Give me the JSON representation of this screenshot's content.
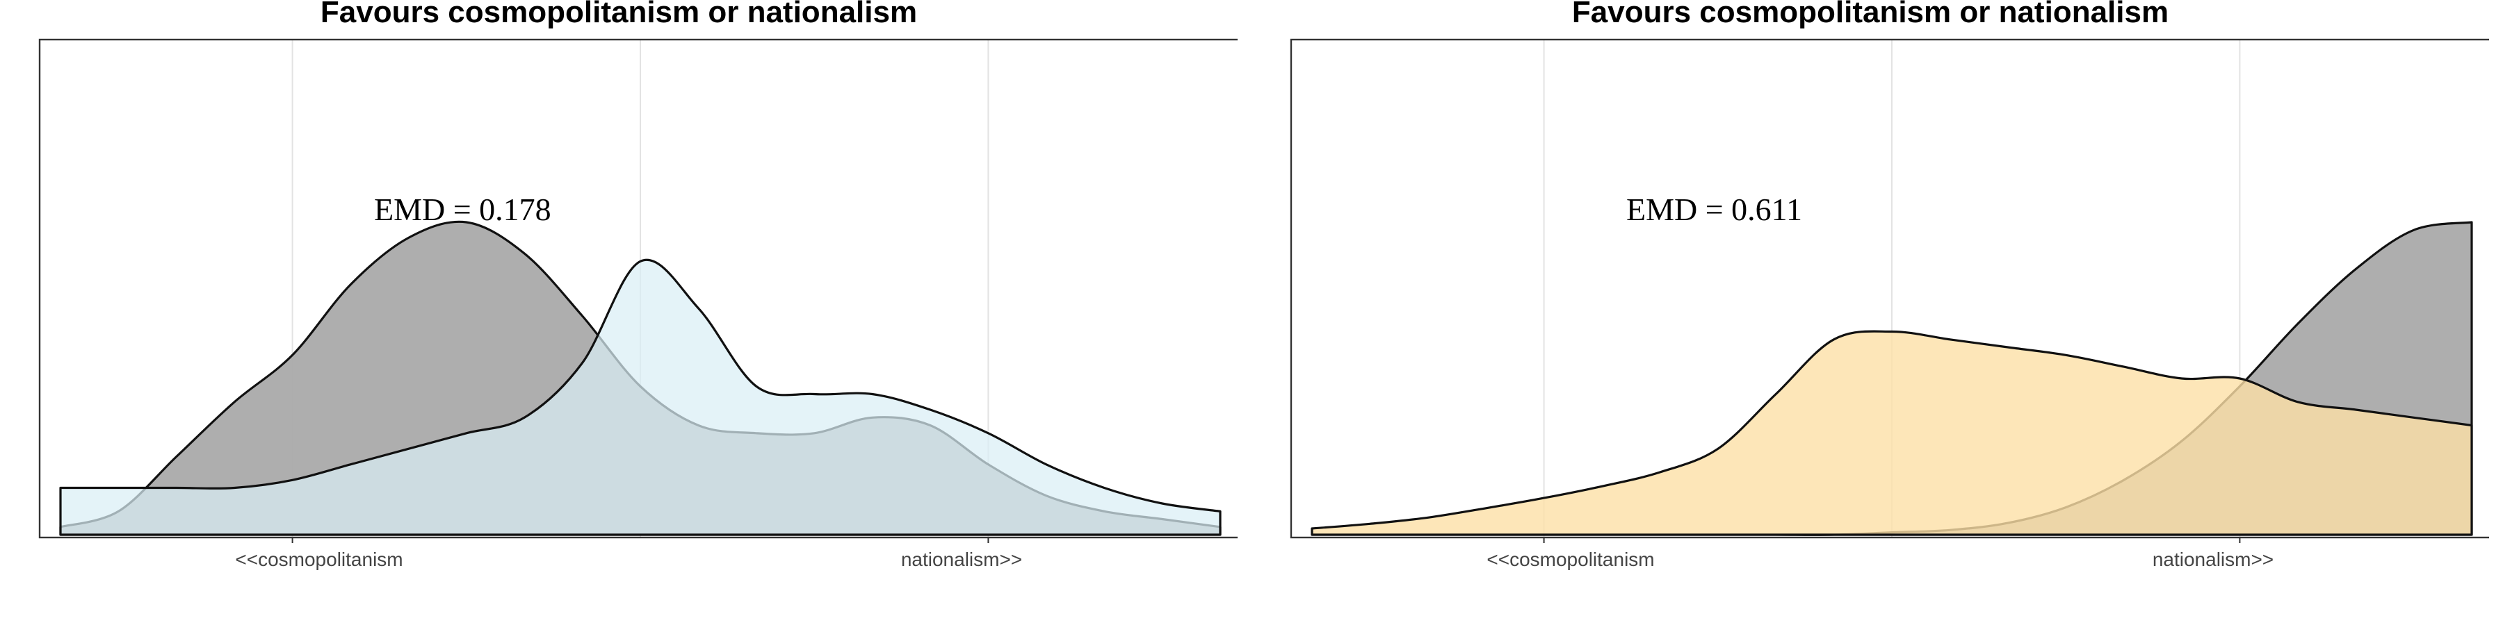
{
  "chart_data": [
    {
      "type": "area",
      "title": "Favours cosmopolitanism or nationalism",
      "annotation": "EMD = 0.178",
      "xlim": [
        0,
        10
      ],
      "ylim": [
        0,
        1
      ],
      "grid": true,
      "ticks": [
        {
          "x": 2,
          "label": "<<cosmopolitanism"
        },
        {
          "x": 8,
          "label": "nationalism>>"
        }
      ],
      "x": [
        0,
        0.5,
        1,
        1.5,
        2,
        2.5,
        3,
        3.5,
        4,
        4.5,
        5,
        5.5,
        6,
        6.5,
        7,
        7.5,
        8,
        8.5,
        9,
        9.5,
        10
      ],
      "series": [
        {
          "color": "#aaaaaa",
          "opacity": 0.95,
          "values": [
            0.01,
            0.03,
            0.1,
            0.17,
            0.23,
            0.32,
            0.38,
            0.4,
            0.36,
            0.28,
            0.19,
            0.14,
            0.13,
            0.13,
            0.15,
            0.14,
            0.09,
            0.05,
            0.03,
            0.02,
            0.01
          ]
        },
        {
          "color": "#d9eef5",
          "opacity": 0.72,
          "values": [
            0.06,
            0.06,
            0.06,
            0.06,
            0.07,
            0.09,
            0.11,
            0.13,
            0.15,
            0.22,
            0.35,
            0.29,
            0.19,
            0.18,
            0.18,
            0.16,
            0.13,
            0.09,
            0.06,
            0.04,
            0.03
          ]
        }
      ]
    },
    {
      "type": "area",
      "title": "Favours cosmopolitanism or nationalism",
      "annotation": "EMD = 0.611",
      "xlim": [
        0,
        10
      ],
      "ylim": [
        0,
        1
      ],
      "grid": true,
      "ticks": [
        {
          "x": 2,
          "label": "<<cosmopolitanism"
        },
        {
          "x": 8,
          "label": "nationalism>>"
        }
      ],
      "x": [
        0,
        0.5,
        1,
        1.5,
        2,
        2.5,
        3,
        3.5,
        4,
        4.5,
        5,
        5.5,
        6,
        6.5,
        7,
        7.5,
        8,
        8.5,
        9,
        9.5,
        10
      ],
      "series": [
        {
          "color": "#aaaaaa",
          "opacity": 0.95,
          "values": [
            0,
            0,
            0,
            0,
            0,
            0,
            0,
            0,
            0,
            0,
            0.003,
            0.006,
            0.015,
            0.035,
            0.07,
            0.12,
            0.19,
            0.27,
            0.34,
            0.39,
            0.4
          ]
        },
        {
          "color": "#fde0a6",
          "opacity": 0.8,
          "values": [
            0.008,
            0.014,
            0.022,
            0.034,
            0.047,
            0.062,
            0.08,
            0.11,
            0.18,
            0.25,
            0.26,
            0.25,
            0.24,
            0.23,
            0.215,
            0.2,
            0.2,
            0.17,
            0.16,
            0.15,
            0.14
          ]
        }
      ]
    }
  ]
}
